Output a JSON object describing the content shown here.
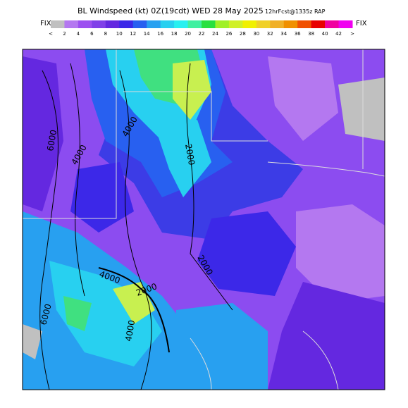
{
  "header": {
    "title": "BL Windspeed (kt) 0Z(19cdt) WED 28 May 2025",
    "forecast": "12hrFcst@1335z RAP"
  },
  "legend": {
    "left_label": "FIX",
    "right_label": "FIX",
    "labels": [
      "<",
      "2",
      "4",
      "6",
      "8",
      "10",
      "12",
      "14",
      "16",
      "18",
      "20",
      "22",
      "24",
      "26",
      "28",
      "30",
      "32",
      "34",
      "36",
      "38",
      "40",
      "42",
      ">"
    ],
    "colors": [
      "#c0c0c0",
      "#b478f0",
      "#9c50f0",
      "#8040e8",
      "#6428e0",
      "#3c28e8",
      "#2860f0",
      "#28a0f0",
      "#28d0f0",
      "#28f0f0",
      "#40f0a0",
      "#28e040",
      "#a0f028",
      "#d0f028",
      "#f0f000",
      "#f0d028",
      "#f0b028",
      "#f09000",
      "#f05000",
      "#e80000",
      "#f000a0",
      "#f000f0"
    ]
  },
  "contour_labels": [
    "6000",
    "4000",
    "4000",
    "2000",
    "2000",
    "4000",
    "2000",
    "6000",
    "4000"
  ]
}
